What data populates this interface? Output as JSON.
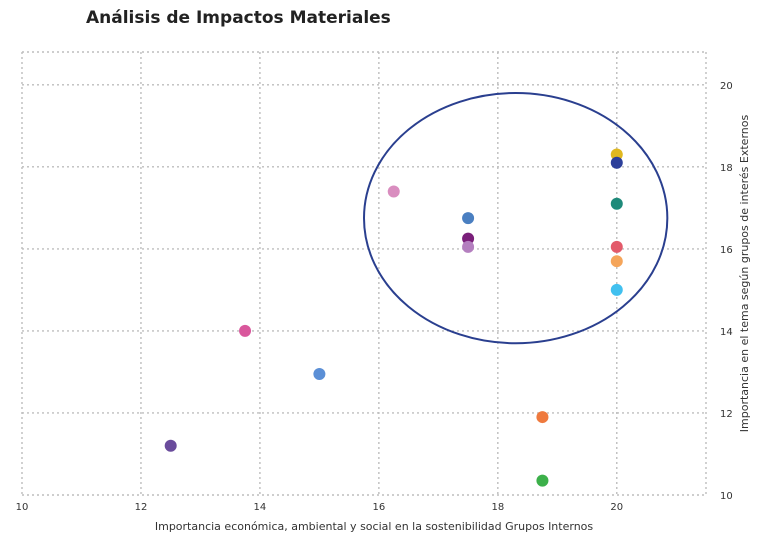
{
  "chart_data": {
    "type": "scatter",
    "title": "Análisis de Impactos Materiales",
    "xlabel": "Importancia económica, ambiental y social en la sostenibilidad Grupos Internos",
    "ylabel": "Importancia en el tema según grupos de interés Externos",
    "xlim": [
      10,
      21.5
    ],
    "ylim": [
      10,
      20.8
    ],
    "x_ticks": [
      10,
      12,
      14,
      16,
      18,
      20
    ],
    "y_ticks": [
      10,
      12,
      14,
      16,
      18,
      20
    ],
    "y_axis_side": "right",
    "grid": true,
    "points": [
      {
        "x": 12.5,
        "y": 11.2,
        "color": "#6a4c9c"
      },
      {
        "x": 13.75,
        "y": 14.0,
        "color": "#d9579c"
      },
      {
        "x": 15.0,
        "y": 12.95,
        "color": "#5b8fd6"
      },
      {
        "x": 16.25,
        "y": 17.4,
        "color": "#d98dbf"
      },
      {
        "x": 17.5,
        "y": 16.75,
        "color": "#4a7fc1"
      },
      {
        "x": 17.5,
        "y": 16.25,
        "color": "#7a1f7a"
      },
      {
        "x": 17.5,
        "y": 16.05,
        "color": "#b47fbf"
      },
      {
        "x": 18.75,
        "y": 11.9,
        "color": "#ef7a3e"
      },
      {
        "x": 18.75,
        "y": 10.35,
        "color": "#3cb04a"
      },
      {
        "x": 20.0,
        "y": 18.3,
        "color": "#e0b81f"
      },
      {
        "x": 20.0,
        "y": 18.1,
        "color": "#2c3f9a"
      },
      {
        "x": 20.0,
        "y": 17.1,
        "color": "#1e8a7a"
      },
      {
        "x": 20.0,
        "y": 16.05,
        "color": "#e35a6a"
      },
      {
        "x": 20.0,
        "y": 15.7,
        "color": "#f5a55a"
      },
      {
        "x": 20.0,
        "y": 15.0,
        "color": "#41c0ef"
      }
    ],
    "highlight_ellipse": {
      "cx": 18.3,
      "cy": 16.75,
      "rx": 2.55,
      "ry": 3.05,
      "color": "#2a3f8f"
    }
  }
}
